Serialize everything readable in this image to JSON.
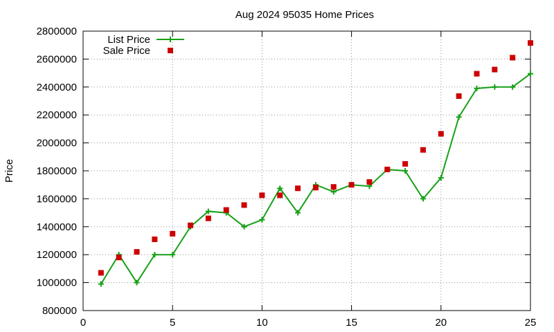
{
  "chart_data": {
    "type": "line",
    "title": "Aug 2024 95035 Home Prices",
    "xlabel": "",
    "ylabel": "Price",
    "xlim": [
      0,
      25
    ],
    "ylim": [
      800000,
      2800000
    ],
    "x_ticks": [
      0,
      5,
      10,
      15,
      20,
      25
    ],
    "y_ticks": [
      800000,
      1000000,
      1200000,
      1400000,
      1600000,
      1800000,
      2000000,
      2200000,
      2400000,
      2600000,
      2800000
    ],
    "grid": true,
    "legend_position": "top-left",
    "series": [
      {
        "name": "List Price",
        "style": "line-plus",
        "color": "#16a016",
        "points": [
          [
            1,
            990000
          ],
          [
            2,
            1200000
          ],
          [
            3,
            1000000
          ],
          [
            4,
            1200000
          ],
          [
            5,
            1200000
          ],
          [
            6,
            1400000
          ],
          [
            7,
            1510000
          ],
          [
            8,
            1500000
          ],
          [
            9,
            1400000
          ],
          [
            10,
            1450000
          ],
          [
            11,
            1675000
          ],
          [
            12,
            1500000
          ],
          [
            13,
            1700000
          ],
          [
            14,
            1650000
          ],
          [
            15,
            1700000
          ],
          [
            16,
            1690000
          ],
          [
            17,
            1810000
          ],
          [
            18,
            1800000
          ],
          [
            19,
            1600000
          ],
          [
            20,
            1750000
          ],
          [
            21,
            2185000
          ],
          [
            22,
            2390000
          ],
          [
            23,
            2400000
          ],
          [
            24,
            2400000
          ],
          [
            25,
            2495000
          ]
        ]
      },
      {
        "name": "Sale Price",
        "style": "square",
        "color": "#cc0000",
        "points": [
          [
            1,
            1070000
          ],
          [
            2,
            1180000
          ],
          [
            3,
            1220000
          ],
          [
            4,
            1310000
          ],
          [
            5,
            1350000
          ],
          [
            6,
            1410000
          ],
          [
            7,
            1460000
          ],
          [
            8,
            1520000
          ],
          [
            9,
            1555000
          ],
          [
            10,
            1625000
          ],
          [
            11,
            1625000
          ],
          [
            12,
            1675000
          ],
          [
            13,
            1680000
          ],
          [
            14,
            1685000
          ],
          [
            15,
            1700000
          ],
          [
            16,
            1720000
          ],
          [
            17,
            1810000
          ],
          [
            18,
            1850000
          ],
          [
            19,
            1950000
          ],
          [
            20,
            2065000
          ],
          [
            21,
            2335000
          ],
          [
            22,
            2495000
          ],
          [
            23,
            2525000
          ],
          [
            24,
            2610000
          ],
          [
            25,
            2715000
          ]
        ]
      }
    ]
  }
}
